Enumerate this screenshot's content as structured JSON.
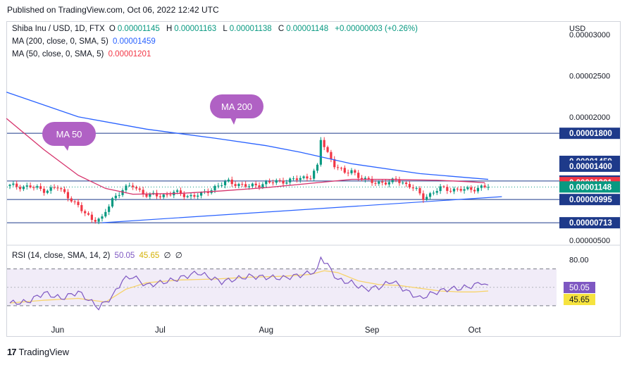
{
  "published": "Published on TradingView.com, Oct 06, 2022 12:42 UTC",
  "legend": {
    "symbol": "Shiba Inu / USD, 1D, FTX",
    "o_label": "O",
    "o": "0.00001145",
    "h_label": "H",
    "h": "0.00001163",
    "l_label": "L",
    "l": "0.00001138",
    "c_label": "C",
    "c": "0.00001148",
    "change": "+0.00000003 (+0.26%)",
    "ma200_label": "MA (200, close, 0, SMA, 5)",
    "ma200_value": "0.00001459",
    "ma50_label": "MA (50, close, 0, SMA, 5)",
    "ma50_value": "0.00001201",
    "rsi_label": "RSI (14, close, SMA, 14, 2)",
    "rsi_value": "50.05",
    "rsi_ma_value": "45.65",
    "na1": "∅",
    "na2": "∅"
  },
  "footer": {
    "brand": "TradingView",
    "logo": "17"
  },
  "colors": {
    "up": "#089981",
    "down": "#f23645",
    "ma200": "#2962ff",
    "ma50": "#d6336c",
    "rsi": "#7e57c2",
    "rsi_ma": "#f7d36b",
    "level": "#1e3a8a",
    "bubble": "#b061c4"
  },
  "chart_data": {
    "type": "candlestick",
    "currency": "USD",
    "price_ticks": [
      "0.00003000",
      "0.00002500",
      "0.00002000",
      "0.00000500"
    ],
    "price_range": [
      5e-06,
      3e-05
    ],
    "levels": [
      {
        "value": 1.8e-05,
        "label": "0.00001800"
      },
      {
        "value": 1.22e-05,
        "label": "0.00001220"
      },
      {
        "value": 9.95e-06,
        "label": "0.00000995"
      },
      {
        "value": 7.13e-06,
        "label": "0.00000713"
      }
    ],
    "price_labels": [
      {
        "value": 1.8e-05,
        "label": "0.00001800",
        "kind": "level"
      },
      {
        "value": 1.459e-05,
        "label": "0.00001459",
        "kind": "level"
      },
      {
        "value": 1.4e-05,
        "label": "0.00001400",
        "kind": "level"
      },
      {
        "value": 1.22e-05,
        "label": "0.00001220",
        "kind": "level"
      },
      {
        "value": 1.201e-05,
        "label": "0.00001201",
        "kind": "ma50"
      },
      {
        "value": 1.148e-05,
        "label": "0.00001148",
        "kind": "last"
      },
      {
        "value": 9.95e-06,
        "label": "0.00000995",
        "kind": "level"
      },
      {
        "value": 7.13e-06,
        "label": "0.00000713",
        "kind": "level"
      }
    ],
    "annotations": [
      {
        "text": "MA 200",
        "series": "ma200",
        "day": 85
      },
      {
        "text": "MA 50",
        "series": "ma50",
        "day": 22
      }
    ],
    "x_ticks": [
      {
        "label": "Jun",
        "day": 14
      },
      {
        "label": "Jul",
        "day": 44
      },
      {
        "label": "Aug",
        "day": 75
      },
      {
        "label": "Sep",
        "day": 106
      },
      {
        "label": "Oct",
        "day": 136
      }
    ],
    "day_count": 142,
    "rsi_ticks": [
      "80.00"
    ],
    "rsi_range": [
      20,
      85
    ],
    "rsi_band": [
      70,
      30
    ],
    "rsi_mid": 50,
    "last_close": 1.148e-05,
    "ma50_value": 1.201e-05,
    "rsi_last": 50.05,
    "rsi_ma_last": 45.65
  }
}
